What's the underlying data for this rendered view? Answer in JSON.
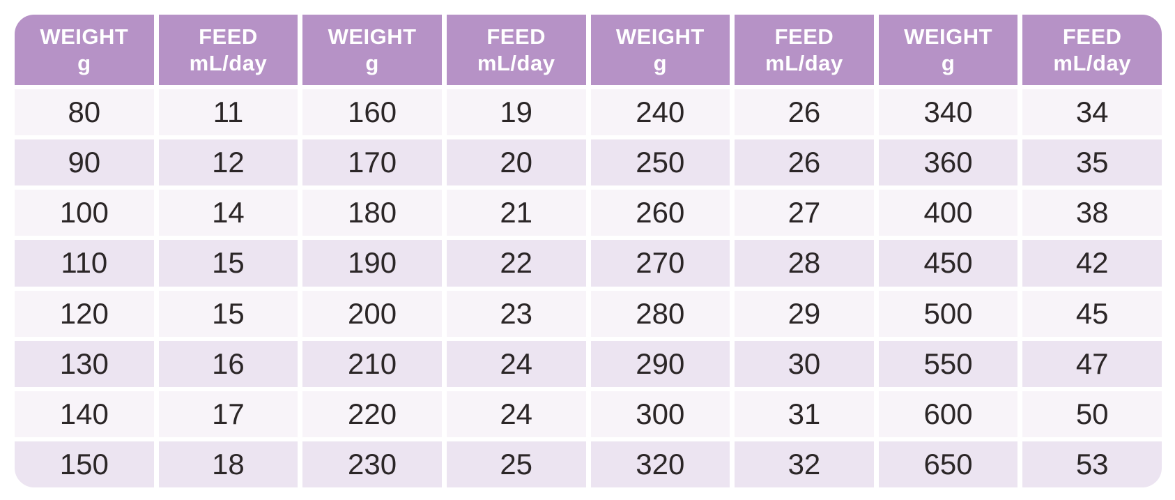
{
  "colors": {
    "header_bg": "#b692c6",
    "header_text": "#ffffff",
    "row_light": "#f8f4f9",
    "row_dark": "#ece4f1",
    "cell_text": "#2b2627",
    "page_bg": "#ffffff"
  },
  "header": {
    "weight_label": "WEIGHT",
    "weight_unit": "g",
    "feed_label": "FEED",
    "feed_unit": "mL/day"
  },
  "chart_data": {
    "type": "table",
    "columns": [
      "WEIGHT g",
      "FEED mL/day",
      "WEIGHT g",
      "FEED mL/day",
      "WEIGHT g",
      "FEED mL/day",
      "WEIGHT g",
      "FEED mL/day"
    ],
    "groups": [
      {
        "rows": [
          {
            "weight": "80",
            "feed": "11"
          },
          {
            "weight": "90",
            "feed": "12"
          },
          {
            "weight": "100",
            "feed": "14"
          },
          {
            "weight": "110",
            "feed": "15"
          },
          {
            "weight": "120",
            "feed": "15"
          },
          {
            "weight": "130",
            "feed": "16"
          },
          {
            "weight": "140",
            "feed": "17"
          },
          {
            "weight": "150",
            "feed": "18"
          }
        ]
      },
      {
        "rows": [
          {
            "weight": "160",
            "feed": "19"
          },
          {
            "weight": "170",
            "feed": "20"
          },
          {
            "weight": "180",
            "feed": "21"
          },
          {
            "weight": "190",
            "feed": "22"
          },
          {
            "weight": "200",
            "feed": "23"
          },
          {
            "weight": "210",
            "feed": "24"
          },
          {
            "weight": "220",
            "feed": "24"
          },
          {
            "weight": "230",
            "feed": "25"
          }
        ]
      },
      {
        "rows": [
          {
            "weight": "240",
            "feed": "26"
          },
          {
            "weight": "250",
            "feed": "26"
          },
          {
            "weight": "260",
            "feed": "27"
          },
          {
            "weight": "270",
            "feed": "28"
          },
          {
            "weight": "280",
            "feed": "29"
          },
          {
            "weight": "290",
            "feed": "30"
          },
          {
            "weight": "300",
            "feed": "31"
          },
          {
            "weight": "320",
            "feed": "32"
          }
        ]
      },
      {
        "rows": [
          {
            "weight": "340",
            "feed": "34"
          },
          {
            "weight": "360",
            "feed": "35"
          },
          {
            "weight": "400",
            "feed": "38"
          },
          {
            "weight": "450",
            "feed": "42"
          },
          {
            "weight": "500",
            "feed": "45"
          },
          {
            "weight": "550",
            "feed": "47"
          },
          {
            "weight": "600",
            "feed": "50"
          },
          {
            "weight": "650",
            "feed": "53"
          }
        ]
      }
    ]
  }
}
